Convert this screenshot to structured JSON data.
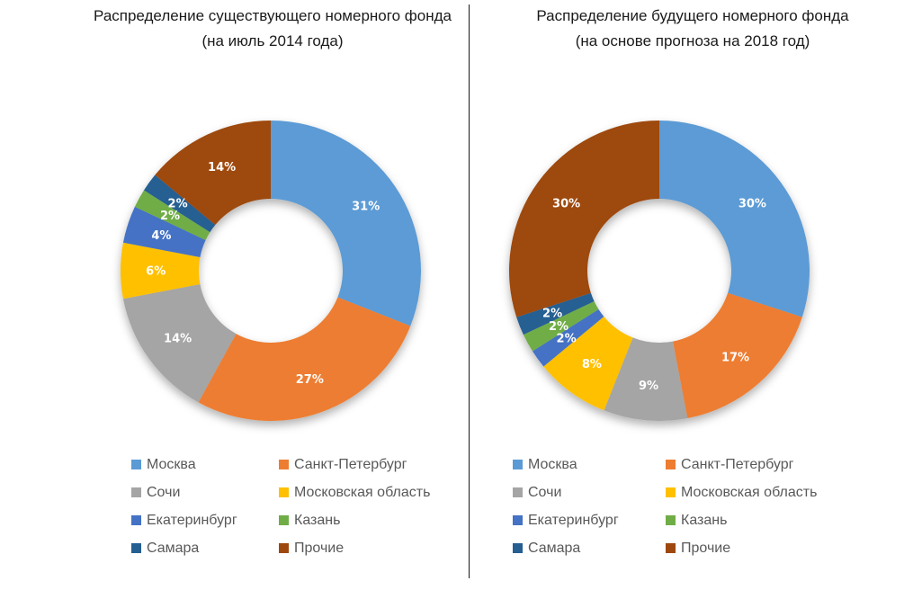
{
  "page": {
    "background": "#ffffff",
    "divider_color": "#1a1a1a"
  },
  "chart_data": [
    {
      "type": "pie",
      "subtype": "donut",
      "title": "Распределение существующего номерного фонда",
      "subtitle": "(на июль 2014 года)",
      "categories": [
        "Москва",
        "Санкт-Петербург",
        "Сочи",
        "Московская область",
        "Екатеринбург",
        "Казань",
        "Самара",
        "Прочие"
      ],
      "values": [
        31,
        27,
        14,
        6,
        4,
        2,
        2,
        14
      ],
      "labels": [
        "31%",
        "27%",
        "14%",
        "6%",
        "4%",
        "2%",
        "2%",
        "14%"
      ],
      "colors": [
        "#5B9BD5",
        "#ED7D31",
        "#A5A5A5",
        "#FFC000",
        "#4472C4",
        "#70AD47",
        "#255E91",
        "#9E480E"
      ],
      "label_color": "#ffffff",
      "start_angle": 0,
      "direction": "clockwise",
      "inner_radius_ratio": 0.48,
      "legend_position": "bottom",
      "legend_columns": 2
    },
    {
      "type": "pie",
      "subtype": "donut",
      "title": "Распределение будущего номерного фонда",
      "subtitle": "(на основе прогноза на 2018 год)",
      "categories": [
        "Москва",
        "Санкт-Петербург",
        "Сочи",
        "Московская область",
        "Екатеринбург",
        "Казань",
        "Самара",
        "Прочие"
      ],
      "values": [
        30,
        17,
        9,
        8,
        2,
        2,
        2,
        30
      ],
      "labels": [
        "30%",
        "17%",
        "9%",
        "8%",
        "2%",
        "2%",
        "2%",
        "30%"
      ],
      "colors": [
        "#5B9BD5",
        "#ED7D31",
        "#A5A5A5",
        "#FFC000",
        "#4472C4",
        "#70AD47",
        "#255E91",
        "#9E480E"
      ],
      "label_color": "#ffffff",
      "start_angle": 0,
      "direction": "clockwise",
      "inner_radius_ratio": 0.48,
      "legend_position": "bottom",
      "legend_columns": 2
    }
  ]
}
